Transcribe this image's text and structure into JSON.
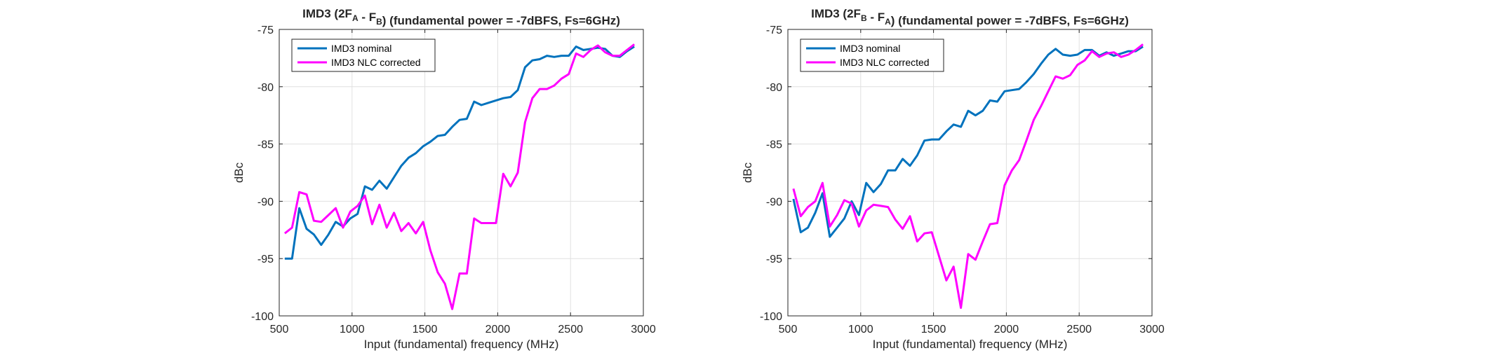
{
  "colors": {
    "nominal": "#0072bd",
    "corrected": "#ff00ff",
    "grid": "#e0e0e0",
    "axis": "#262626"
  },
  "chart_data": [
    {
      "type": "line",
      "title": "IMD3 (2F",
      "title_parts": [
        {
          "text": "IMD3 (2F",
          "sub": false
        },
        {
          "text": "A",
          "sub": true
        },
        {
          "text": " - F",
          "sub": false
        },
        {
          "text": "B",
          "sub": true
        },
        {
          "text": ") (fundamental power = -7dBFS, Fs=6GHz)",
          "sub": false
        }
      ],
      "xlabel": "Input (fundamental) frequency (MHz)",
      "ylabel": "dBc",
      "xlim": [
        500,
        3000
      ],
      "ylim": [
        -100,
        -75
      ],
      "xticks": [
        500,
        1000,
        1500,
        2000,
        2500,
        3000
      ],
      "yticks": [
        -100,
        -95,
        -90,
        -85,
        -80,
        -75
      ],
      "xtick_labels": [
        "500",
        "1000",
        "1500",
        "2000",
        "2500",
        "3000"
      ],
      "ytick_labels": [
        "-100",
        "-95",
        "-90",
        "-85",
        "-80",
        "-75"
      ],
      "grid": true,
      "legend": "top-left",
      "series": [
        {
          "name": "IMD3 nominal",
          "color": "#0072bd",
          "x": [
            538,
            588,
            638,
            688,
            738,
            788,
            838,
            888,
            938,
            988,
            1038,
            1088,
            1138,
            1188,
            1238,
            1288,
            1338,
            1388,
            1438,
            1488,
            1538,
            1588,
            1638,
            1688,
            1738,
            1788,
            1838,
            1888,
            1938,
            1988,
            2038,
            2088,
            2138,
            2188,
            2238,
            2288,
            2338,
            2388,
            2438,
            2488,
            2538,
            2588,
            2638,
            2688,
            2738,
            2788,
            2838,
            2888,
            2938
          ],
          "values": [
            -95.0,
            -95.0,
            -90.6,
            -92.4,
            -92.9,
            -93.8,
            -92.9,
            -91.8,
            -92.2,
            -91.5,
            -91.1,
            -88.7,
            -89.0,
            -88.2,
            -88.9,
            -87.9,
            -86.9,
            -86.2,
            -85.8,
            -85.2,
            -84.8,
            -84.3,
            -84.2,
            -83.5,
            -82.9,
            -82.8,
            -81.3,
            -81.6,
            -81.4,
            -81.2,
            -81.0,
            -80.9,
            -80.3,
            -78.3,
            -77.7,
            -77.6,
            -77.3,
            -77.4,
            -77.3,
            -77.3,
            -76.5,
            -76.8,
            -76.7,
            -76.6,
            -76.7,
            -77.3,
            -77.4,
            -76.9,
            -76.5
          ]
        },
        {
          "name": "IMD3 NLC corrected",
          "color": "#ff00ff",
          "x": [
            538,
            588,
            638,
            688,
            738,
            788,
            838,
            888,
            938,
            988,
            1038,
            1088,
            1138,
            1188,
            1238,
            1288,
            1338,
            1388,
            1438,
            1488,
            1538,
            1588,
            1638,
            1688,
            1738,
            1788,
            1838,
            1888,
            1938,
            1988,
            2038,
            2088,
            2138,
            2188,
            2238,
            2288,
            2338,
            2388,
            2438,
            2488,
            2538,
            2588,
            2638,
            2688,
            2738,
            2788,
            2838,
            2888,
            2938
          ],
          "values": [
            -92.8,
            -92.3,
            -89.2,
            -89.4,
            -91.7,
            -91.8,
            -91.2,
            -90.6,
            -92.3,
            -90.9,
            -90.4,
            -89.5,
            -92.0,
            -90.3,
            -92.3,
            -91.0,
            -92.6,
            -91.9,
            -92.8,
            -91.8,
            -94.3,
            -96.2,
            -97.2,
            -99.4,
            -96.3,
            -96.3,
            -91.5,
            -91.9,
            -91.9,
            -91.9,
            -87.6,
            -88.7,
            -87.5,
            -83.1,
            -81.0,
            -80.2,
            -80.2,
            -79.9,
            -79.3,
            -78.9,
            -77.1,
            -77.4,
            -76.8,
            -76.4,
            -77.0,
            -77.3,
            -77.3,
            -76.8,
            -76.3
          ]
        }
      ]
    },
    {
      "type": "line",
      "title": "IMD3 (2F",
      "title_parts": [
        {
          "text": "IMD3 (2F",
          "sub": false
        },
        {
          "text": "B",
          "sub": true
        },
        {
          "text": " - F",
          "sub": false
        },
        {
          "text": "A",
          "sub": true
        },
        {
          "text": ") (fundamental power = -7dBFS, Fs=6GHz)",
          "sub": false
        }
      ],
      "xlabel": "Input (fundamental) frequency (MHz)",
      "ylabel": "dBc",
      "xlim": [
        500,
        3000
      ],
      "ylim": [
        -100,
        -75
      ],
      "xticks": [
        500,
        1000,
        1500,
        2000,
        2500,
        3000
      ],
      "yticks": [
        -100,
        -95,
        -90,
        -85,
        -80,
        -75
      ],
      "xtick_labels": [
        "500",
        "1000",
        "1500",
        "2000",
        "2500",
        "3000"
      ],
      "ytick_labels": [
        "-100",
        "-95",
        "-90",
        "-85",
        "-80",
        "-75"
      ],
      "grid": true,
      "legend": "top-left",
      "series": [
        {
          "name": "IMD3 nominal",
          "color": "#0072bd",
          "x": [
            538,
            588,
            638,
            688,
            738,
            788,
            838,
            888,
            938,
            988,
            1038,
            1088,
            1138,
            1188,
            1238,
            1288,
            1338,
            1388,
            1438,
            1488,
            1538,
            1588,
            1638,
            1688,
            1738,
            1788,
            1838,
            1888,
            1938,
            1988,
            2038,
            2088,
            2138,
            2188,
            2238,
            2288,
            2338,
            2388,
            2438,
            2488,
            2538,
            2588,
            2638,
            2688,
            2738,
            2788,
            2838,
            2888,
            2938
          ],
          "values": [
            -89.8,
            -92.7,
            -92.3,
            -91.0,
            -89.3,
            -93.1,
            -92.3,
            -91.5,
            -90.0,
            -91.2,
            -88.4,
            -89.2,
            -88.5,
            -87.3,
            -87.3,
            -86.3,
            -86.9,
            -86.0,
            -84.7,
            -84.6,
            -84.6,
            -83.9,
            -83.3,
            -83.5,
            -82.1,
            -82.5,
            -82.1,
            -81.2,
            -81.3,
            -80.4,
            -80.3,
            -80.2,
            -79.6,
            -78.9,
            -78.0,
            -77.2,
            -76.7,
            -77.2,
            -77.3,
            -77.2,
            -76.8,
            -76.8,
            -77.3,
            -77.0,
            -77.3,
            -77.1,
            -76.9,
            -76.9,
            -76.5
          ]
        },
        {
          "name": "IMD3 NLC corrected",
          "color": "#ff00ff",
          "x": [
            538,
            588,
            638,
            688,
            738,
            788,
            838,
            888,
            938,
            988,
            1038,
            1088,
            1138,
            1188,
            1238,
            1288,
            1338,
            1388,
            1438,
            1488,
            1538,
            1588,
            1638,
            1688,
            1738,
            1788,
            1838,
            1888,
            1938,
            1988,
            2038,
            2088,
            2138,
            2188,
            2238,
            2288,
            2338,
            2388,
            2438,
            2488,
            2538,
            2588,
            2638,
            2688,
            2738,
            2788,
            2838,
            2888,
            2938
          ],
          "values": [
            -88.9,
            -91.3,
            -90.5,
            -90.0,
            -88.4,
            -92.2,
            -91.2,
            -89.9,
            -90.2,
            -92.2,
            -90.8,
            -90.3,
            -90.4,
            -90.5,
            -91.6,
            -92.4,
            -91.3,
            -93.5,
            -92.8,
            -92.7,
            -94.8,
            -96.9,
            -95.7,
            -99.3,
            -94.6,
            -95.1,
            -93.5,
            -92.0,
            -91.9,
            -88.6,
            -87.3,
            -86.4,
            -84.7,
            -82.9,
            -81.7,
            -80.4,
            -79.1,
            -79.3,
            -79.0,
            -78.1,
            -77.7,
            -76.9,
            -77.4,
            -77.1,
            -77.0,
            -77.4,
            -77.2,
            -76.8,
            -76.3
          ]
        }
      ]
    }
  ]
}
